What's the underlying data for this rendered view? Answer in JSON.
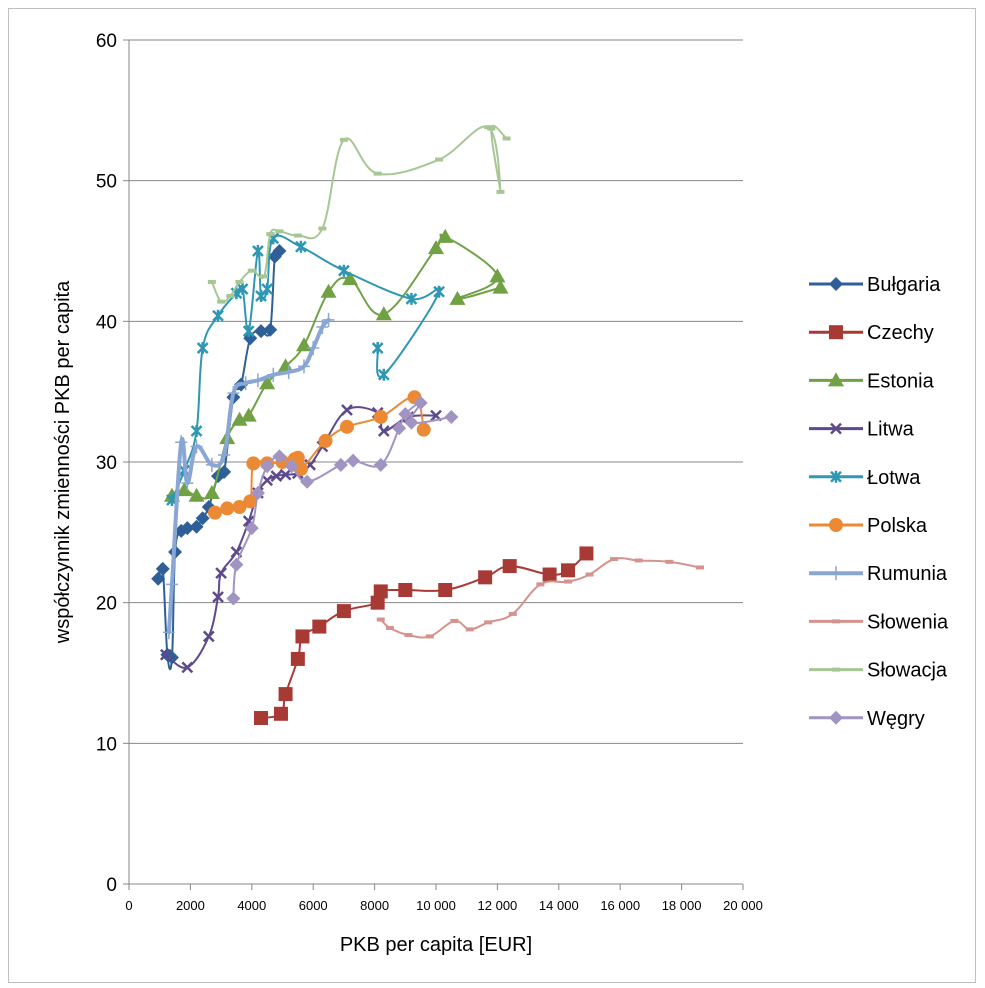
{
  "chart_data": {
    "type": "line",
    "title": "",
    "xlabel": "PKB per capita [EUR]",
    "ylabel": "współczynnik zmienności PKB per capita",
    "xlim": [
      0,
      20000
    ],
    "ylim": [
      0,
      60
    ],
    "x_ticks": [
      "0",
      "2000",
      "4000",
      "6000",
      "8000",
      "10 000",
      "12 000",
      "14 000",
      "16 000",
      "18 000",
      "20 000"
    ],
    "y_ticks": [
      "0",
      "10",
      "20",
      "30",
      "40",
      "50",
      "60"
    ],
    "grid": "horizontal",
    "legend_position": "right",
    "series": [
      {
        "name": "Bułgaria",
        "color": "#2e5f97",
        "marker": "diamond",
        "width": 2,
        "points": [
          [
            950,
            21.7
          ],
          [
            1100,
            22.4
          ],
          [
            1250,
            16.3
          ],
          [
            1400,
            16.1
          ],
          [
            1500,
            23.6
          ],
          [
            1700,
            25.1
          ],
          [
            1900,
            25.3
          ],
          [
            2200,
            25.4
          ],
          [
            2400,
            26.0
          ],
          [
            2600,
            26.8
          ],
          [
            2900,
            29.0
          ],
          [
            3100,
            29.3
          ],
          [
            3400,
            34.6
          ],
          [
            3650,
            35.5
          ],
          [
            3950,
            38.8
          ],
          [
            4300,
            39.3
          ],
          [
            4600,
            39.4
          ],
          [
            4750,
            44.6
          ],
          [
            4900,
            45.0
          ]
        ]
      },
      {
        "name": "Czechy",
        "color": "#a83a36",
        "marker": "square",
        "width": 2,
        "points": [
          [
            4300,
            11.8
          ],
          [
            4950,
            12.1
          ],
          [
            5100,
            13.5
          ],
          [
            5500,
            16.0
          ],
          [
            5650,
            17.6
          ],
          [
            6200,
            18.3
          ],
          [
            7000,
            19.4
          ],
          [
            8100,
            20.0
          ],
          [
            8200,
            20.8
          ],
          [
            9000,
            20.9
          ],
          [
            10300,
            20.9
          ],
          [
            11600,
            21.8
          ],
          [
            12400,
            22.6
          ],
          [
            13700,
            22.0
          ],
          [
            14300,
            22.3
          ],
          [
            14900,
            23.5
          ]
        ]
      },
      {
        "name": "Estonia",
        "color": "#70a145",
        "marker": "triangle",
        "width": 2,
        "points": [
          [
            1400,
            27.6
          ],
          [
            1800,
            28.0
          ],
          [
            2200,
            27.6
          ],
          [
            2700,
            27.8
          ],
          [
            3200,
            31.7
          ],
          [
            3600,
            33.0
          ],
          [
            3900,
            33.3
          ],
          [
            4500,
            35.6
          ],
          [
            5100,
            36.8
          ],
          [
            5700,
            38.3
          ],
          [
            6500,
            42.1
          ],
          [
            7200,
            43.0
          ],
          [
            8300,
            40.5
          ],
          [
            10000,
            45.2
          ],
          [
            10300,
            46.0
          ],
          [
            12000,
            43.2
          ],
          [
            10700,
            41.6
          ],
          [
            12100,
            42.4
          ]
        ]
      },
      {
        "name": "Litwa",
        "color": "#5e4a8b",
        "marker": "x",
        "width": 2,
        "points": [
          [
            1200,
            16.3
          ],
          [
            1900,
            15.4
          ],
          [
            2600,
            17.6
          ],
          [
            2900,
            20.4
          ],
          [
            3000,
            22.1
          ],
          [
            3500,
            23.6
          ],
          [
            3900,
            25.8
          ],
          [
            4200,
            27.8
          ],
          [
            4500,
            28.7
          ],
          [
            4800,
            29.0
          ],
          [
            5100,
            29.1
          ],
          [
            5500,
            29.2
          ],
          [
            5900,
            29.8
          ],
          [
            6300,
            31.1
          ],
          [
            7100,
            33.7
          ],
          [
            8100,
            33.5
          ],
          [
            8300,
            32.2
          ],
          [
            9100,
            33.2
          ],
          [
            10000,
            33.3
          ]
        ]
      },
      {
        "name": "Łotwa",
        "color": "#2f97b2",
        "marker": "star",
        "width": 2,
        "points": [
          [
            1400,
            27.3
          ],
          [
            1800,
            29.4
          ],
          [
            2200,
            32.2
          ],
          [
            2400,
            38.1
          ],
          [
            2900,
            40.4
          ],
          [
            3500,
            42.0
          ],
          [
            3700,
            42.3
          ],
          [
            3900,
            39.3
          ],
          [
            4200,
            45.0
          ],
          [
            4300,
            41.8
          ],
          [
            4500,
            42.3
          ],
          [
            4700,
            45.9
          ],
          [
            5600,
            45.3
          ],
          [
            7000,
            43.6
          ],
          [
            9200,
            41.6
          ],
          [
            10100,
            42.1
          ],
          [
            8300,
            36.2
          ],
          [
            8100,
            38.1
          ]
        ]
      },
      {
        "name": "Polska",
        "color": "#ec8935",
        "marker": "circle",
        "width": 2,
        "points": [
          [
            2800,
            26.4
          ],
          [
            3200,
            26.7
          ],
          [
            3600,
            26.8
          ],
          [
            3950,
            27.2
          ],
          [
            4050,
            29.9
          ],
          [
            4500,
            29.9
          ],
          [
            5000,
            30.0
          ],
          [
            5400,
            30.2
          ],
          [
            5500,
            30.3
          ],
          [
            5600,
            29.5
          ],
          [
            6400,
            31.5
          ],
          [
            7100,
            32.5
          ],
          [
            8200,
            33.2
          ],
          [
            9300,
            34.6
          ],
          [
            9600,
            32.3
          ]
        ]
      },
      {
        "name": "Rumunia",
        "color": "#89a6d4",
        "marker": "plus",
        "width": 4,
        "points": [
          [
            1300,
            17.9
          ],
          [
            1400,
            21.3
          ],
          [
            1700,
            31.4
          ],
          [
            1900,
            28.5
          ],
          [
            2200,
            31.1
          ],
          [
            2700,
            29.8
          ],
          [
            3100,
            30.5
          ],
          [
            3400,
            34.9
          ],
          [
            3800,
            35.6
          ],
          [
            4200,
            35.8
          ],
          [
            4700,
            36.2
          ],
          [
            5200,
            36.4
          ],
          [
            5700,
            36.8
          ],
          [
            6000,
            38.1
          ],
          [
            6300,
            39.6
          ],
          [
            6500,
            40.1
          ]
        ]
      },
      {
        "name": "Słowenia",
        "color": "#d4938e",
        "marker": "dash",
        "width": 2,
        "points": [
          [
            8200,
            18.8
          ],
          [
            8500,
            18.2
          ],
          [
            9100,
            17.7
          ],
          [
            9800,
            17.6
          ],
          [
            10600,
            18.7
          ],
          [
            11100,
            18.1
          ],
          [
            11700,
            18.6
          ],
          [
            12500,
            19.2
          ],
          [
            13400,
            21.3
          ],
          [
            14300,
            21.5
          ],
          [
            15000,
            22.0
          ],
          [
            15800,
            23.1
          ],
          [
            16600,
            23.0
          ],
          [
            17600,
            22.9
          ],
          [
            18600,
            22.5
          ]
        ]
      },
      {
        "name": "Słowacja",
        "color": "#a6c793",
        "marker": "dash",
        "width": 2,
        "points": [
          [
            2700,
            42.8
          ],
          [
            3000,
            41.4
          ],
          [
            3300,
            41.8
          ],
          [
            3600,
            42.8
          ],
          [
            4000,
            43.6
          ],
          [
            4400,
            43.2
          ],
          [
            4600,
            46.2
          ],
          [
            4900,
            46.4
          ],
          [
            5500,
            46.1
          ],
          [
            6300,
            46.6
          ],
          [
            7000,
            52.9
          ],
          [
            8100,
            50.5
          ],
          [
            10100,
            51.5
          ],
          [
            11700,
            53.8
          ],
          [
            12100,
            49.2
          ],
          [
            11800,
            53.7
          ],
          [
            12300,
            53.0
          ]
        ]
      },
      {
        "name": "Węgry",
        "color": "#a193c2",
        "marker": "diamond",
        "width": 2,
        "points": [
          [
            3400,
            20.3
          ],
          [
            3500,
            22.7
          ],
          [
            4000,
            25.3
          ],
          [
            4200,
            27.8
          ],
          [
            4500,
            29.7
          ],
          [
            4900,
            30.4
          ],
          [
            5300,
            29.7
          ],
          [
            5800,
            28.6
          ],
          [
            6900,
            29.8
          ],
          [
            7300,
            30.1
          ],
          [
            8200,
            29.8
          ],
          [
            8800,
            32.4
          ],
          [
            9000,
            33.4
          ],
          [
            9500,
            34.2
          ],
          [
            9200,
            32.8
          ],
          [
            10500,
            33.2
          ]
        ]
      }
    ]
  }
}
